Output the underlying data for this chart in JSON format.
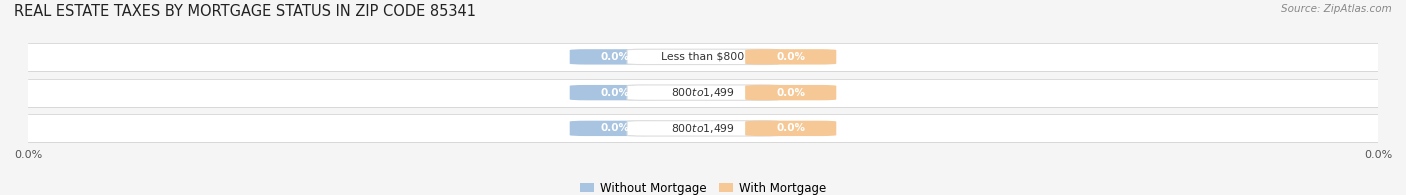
{
  "title": "REAL ESTATE TAXES BY MORTGAGE STATUS IN ZIP CODE 85341",
  "source": "Source: ZipAtlas.com",
  "categories": [
    "Less than $800",
    "$800 to $1,499",
    "$800 to $1,499"
  ],
  "without_mortgage": [
    0.0,
    0.0,
    0.0
  ],
  "with_mortgage": [
    0.0,
    0.0,
    0.0
  ],
  "bar_color_without": "#a8c4e0",
  "bar_color_with": "#f5c896",
  "row_bg_even": "#f0f0f0",
  "row_bg_odd": "#e8e8e8",
  "title_color": "#222222",
  "source_color": "#888888",
  "legend_without": "Without Mortgage",
  "legend_with": "With Mortgage",
  "figure_width": 14.06,
  "figure_height": 1.95
}
